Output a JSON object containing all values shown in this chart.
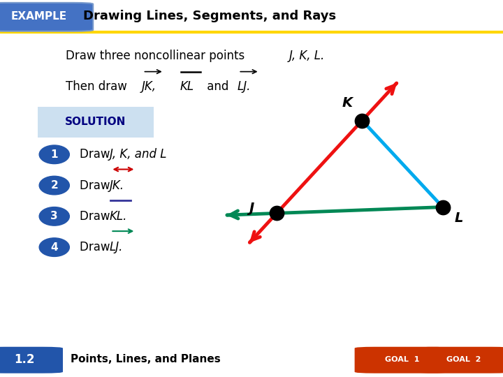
{
  "bg_color": "#ffffff",
  "header_bg": "#4472c4",
  "header_text": "EXAMPLE",
  "header_text_color": "#ffffff",
  "title_text": "Drawing Lines, Segments, and Rays",
  "title_color": "#000000",
  "gold_line_color": "#FFD700",
  "solution_bg": "#cce0f0",
  "solution_text_color": "#000080",
  "step_circle_color": "#2255aa",
  "step_text_color": "#ffffff",
  "body_text_color": "#000000",
  "point_color": "#000000",
  "J": [
    0.55,
    0.42
  ],
  "K": [
    0.72,
    0.72
  ],
  "L": [
    0.88,
    0.44
  ],
  "red_color": "#ee1111",
  "cyan_color": "#00aaee",
  "green_color": "#008855",
  "footer_bg": "#d4cbb8",
  "footer_text": "Points, Lines, and Planes",
  "footer_version": "1.2",
  "arrow_lw": 3.5,
  "point_size": 120
}
